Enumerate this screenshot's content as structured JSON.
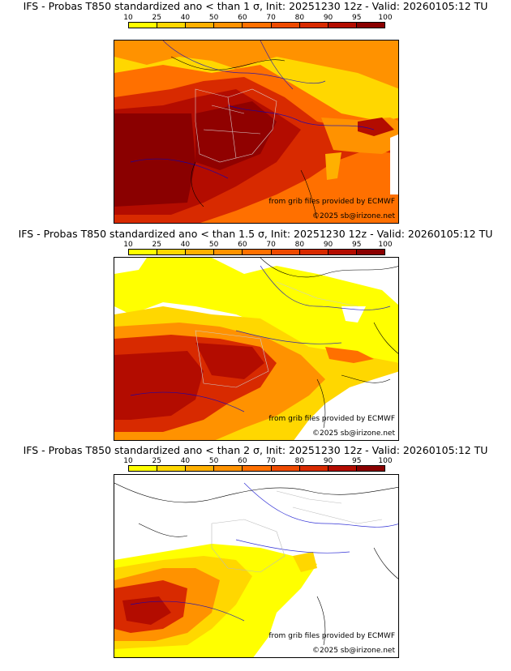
{
  "colorbar": {
    "ticks": [
      "10",
      "25",
      "40",
      "50",
      "60",
      "70",
      "80",
      "90",
      "95",
      "100"
    ],
    "colors": [
      "#ffff00",
      "#ffd700",
      "#ffb000",
      "#ff9200",
      "#ff7000",
      "#ee4a00",
      "#d82a00",
      "#b30c00",
      "#8a0000"
    ]
  },
  "panels": [
    {
      "title": "IFS - Probas T850  standardized ano < than 1 σ, Init: 20251230 12z - Valid: 20260105:12 TU",
      "credit_source": "from grib files provided by ECMWF",
      "credit_copyright": "©2025 sb@irizone.net"
    },
    {
      "title": "IFS - Probas T850  standardized ano < than 1.5 σ, Init: 20251230 12z - Valid: 20260105:12 TU",
      "credit_source": "from grib files provided by ECMWF",
      "credit_copyright": "©2025 sb@irizone.net"
    },
    {
      "title": "IFS - Probas T850  standardized ano < than 2 σ, Init: 20251230 12z - Valid: 20260105:12 TU",
      "credit_source": "from grib files provided by ECMWF",
      "credit_copyright": "©2025 sb@irizone.net"
    }
  ]
}
